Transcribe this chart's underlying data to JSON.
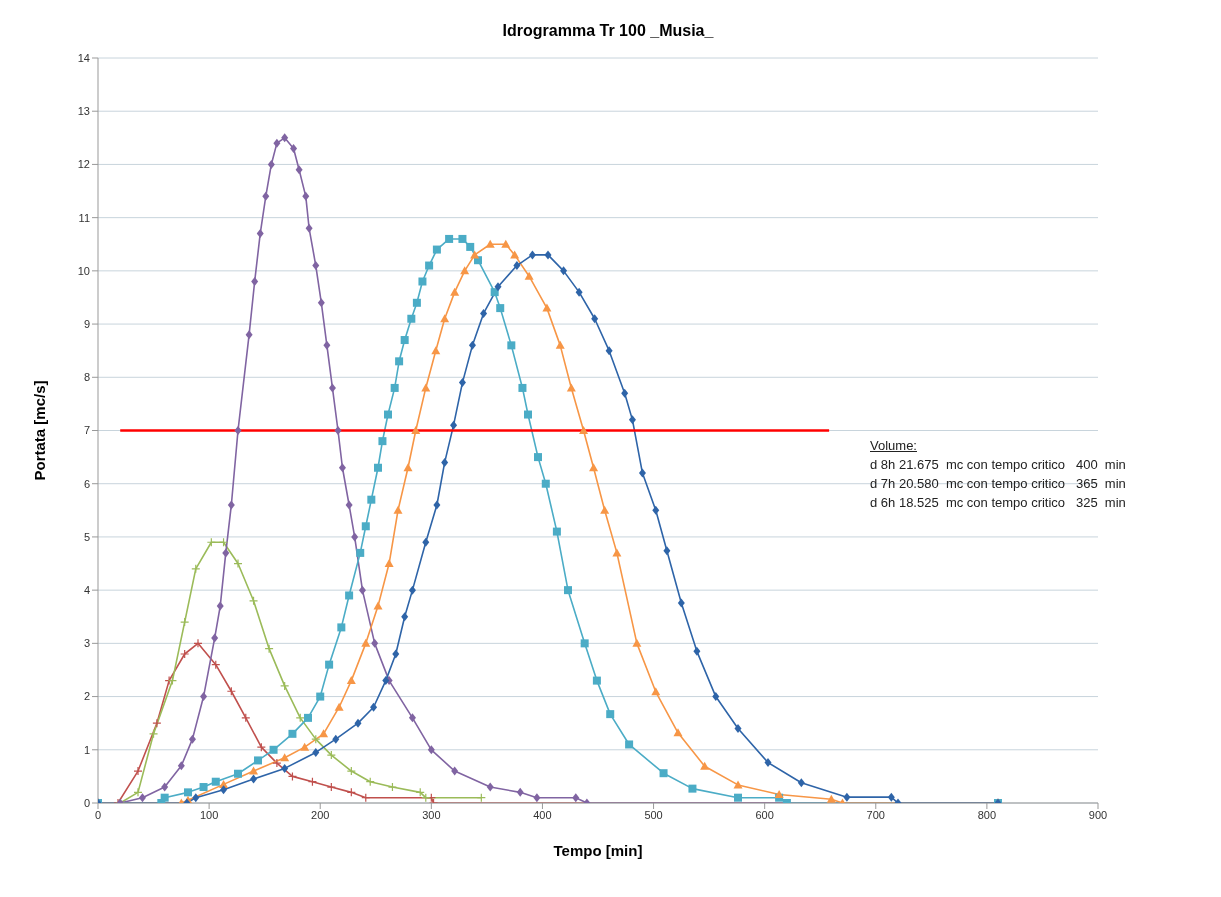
{
  "chart_data": {
    "type": "line",
    "title": "Idrogramma Tr 100 _Musia_",
    "xlabel": "Tempo [min]",
    "ylabel": "Portata [mc/s]",
    "xlim": [
      0,
      900
    ],
    "xticks": [
      0,
      100,
      200,
      300,
      400,
      500,
      600,
      700,
      800,
      900
    ],
    "ylim": [
      0,
      14
    ],
    "yticks": [
      0,
      1,
      2,
      3,
      4,
      5,
      6,
      7,
      8,
      9,
      10,
      11,
      12,
      13,
      14
    ],
    "grid": "y",
    "legend": false,
    "line_style": "solid",
    "annotations": [
      "Volume:",
      "d 8h 21.675  mc con tempo critico   400  min",
      "d 7h 20.580  mc con tempo critico   365  min",
      "d 6h 18.525  mc con tempo critico   325  min"
    ],
    "series": [
      {
        "color": "#c0504d",
        "marker": "cross",
        "x": [
          0,
          18,
          36,
          53,
          64,
          78,
          90,
          106,
          120,
          133,
          147,
          161,
          175,
          193,
          210,
          228,
          241,
          300,
          302,
          810
        ],
        "values": [
          0,
          0,
          0.6,
          1.5,
          2.3,
          2.8,
          3,
          2.6,
          2.1,
          1.6,
          1.05,
          0.75,
          0.5,
          0.4,
          0.3,
          0.2,
          0.1,
          0.1,
          0,
          0
        ]
      },
      {
        "color": "#9bbb59",
        "marker": "cross",
        "x": [
          0,
          20,
          36,
          50,
          67,
          78,
          88,
          102,
          113,
          126,
          140,
          154,
          168,
          182,
          196,
          210,
          228,
          245,
          265,
          290,
          295,
          345
        ],
        "values": [
          0,
          0,
          0.2,
          1.3,
          2.3,
          3.4,
          4.4,
          4.9,
          4.9,
          4.5,
          3.8,
          2.9,
          2.2,
          1.6,
          1.2,
          0.9,
          0.6,
          0.4,
          0.3,
          0.2,
          0.1,
          0.1
        ]
      },
      {
        "color": "#8064a2",
        "marker": "diamond",
        "x": [
          0,
          20,
          40,
          60,
          75,
          85,
          95,
          105,
          110,
          115,
          120,
          126,
          136,
          141,
          146,
          151,
          156,
          161,
          168,
          176,
          181,
          187,
          190,
          196,
          201,
          206,
          211,
          216,
          220,
          226,
          231,
          238,
          249,
          262,
          283,
          300,
          321,
          353,
          380,
          395,
          430,
          440,
          810
        ],
        "values": [
          0,
          0,
          0.1,
          0.3,
          0.7,
          1.2,
          2,
          3.1,
          3.7,
          4.7,
          5.6,
          7,
          8.8,
          9.8,
          10.7,
          11.4,
          12,
          12.4,
          12.5,
          12.3,
          11.9,
          11.4,
          10.8,
          10.1,
          9.4,
          8.6,
          7.8,
          7,
          6.3,
          5.6,
          5,
          4,
          3,
          2.3,
          1.6,
          1,
          0.6,
          0.3,
          0.2,
          0.1,
          0.1,
          0,
          0
        ]
      },
      {
        "color": "#4bacc6",
        "marker": "square",
        "x": [
          0,
          57,
          60,
          81,
          95,
          106,
          126,
          144,
          158,
          175,
          189,
          200,
          208,
          219,
          226,
          236,
          241,
          246,
          252,
          256,
          261,
          267,
          271,
          276,
          282,
          287,
          292,
          298,
          305,
          316,
          328,
          335,
          342,
          357,
          362,
          372,
          382,
          387,
          396,
          403,
          413,
          423,
          438,
          449,
          461,
          478,
          509,
          535,
          576,
          613,
          620,
          810
        ],
        "values": [
          0,
          0,
          0.1,
          0.2,
          0.3,
          0.4,
          0.55,
          0.8,
          1,
          1.3,
          1.6,
          2,
          2.6,
          3.3,
          3.9,
          4.7,
          5.2,
          5.7,
          6.3,
          6.8,
          7.3,
          7.8,
          8.3,
          8.7,
          9.1,
          9.4,
          9.8,
          10.1,
          10.4,
          10.6,
          10.6,
          10.45,
          10.2,
          9.6,
          9.3,
          8.6,
          7.8,
          7.3,
          6.5,
          6,
          5.1,
          4,
          3,
          2.3,
          1.67,
          1.1,
          0.56,
          0.27,
          0.1,
          0.1,
          0,
          0
        ]
      },
      {
        "color": "#f79646",
        "marker": "triangle",
        "x": [
          0,
          75,
          81,
          113,
          140,
          168,
          186,
          203,
          217,
          228,
          241,
          252,
          262,
          270,
          279,
          286,
          295,
          304,
          312,
          321,
          330,
          339,
          353,
          367,
          375,
          388,
          404,
          416,
          426,
          437,
          446,
          456,
          467,
          485,
          502,
          522,
          546,
          576,
          613,
          660,
          670,
          810
        ],
        "values": [
          0,
          0,
          0.05,
          0.35,
          0.6,
          0.85,
          1.05,
          1.3,
          1.8,
          2.3,
          3,
          3.7,
          4.5,
          5.5,
          6.3,
          7,
          7.8,
          8.5,
          9.1,
          9.6,
          10,
          10.3,
          10.5,
          10.5,
          10.3,
          9.9,
          9.3,
          8.6,
          7.8,
          7,
          6.3,
          5.5,
          4.7,
          3,
          2.09,
          1.32,
          0.69,
          0.34,
          0.16,
          0.07,
          0,
          0
        ]
      },
      {
        "color": "#2e64a8",
        "marker": "diamond",
        "x": [
          0,
          80,
          88,
          113,
          140,
          168,
          196,
          214,
          234,
          248,
          259,
          268,
          276,
          283,
          295,
          305,
          312,
          320,
          328,
          337,
          347,
          360,
          377,
          391,
          405,
          419,
          433,
          447,
          460,
          474,
          481,
          490,
          502,
          512,
          525,
          539,
          556,
          576,
          603,
          633,
          674,
          714,
          720,
          810
        ],
        "values": [
          0,
          0,
          0.1,
          0.25,
          0.45,
          0.65,
          0.95,
          1.2,
          1.5,
          1.8,
          2.3,
          2.8,
          3.5,
          4,
          4.9,
          5.6,
          6.4,
          7.1,
          7.9,
          8.6,
          9.2,
          9.7,
          10.1,
          10.3,
          10.3,
          10,
          9.6,
          9.1,
          8.5,
          7.7,
          7.2,
          6.2,
          5.5,
          4.74,
          3.76,
          2.85,
          2,
          1.4,
          0.76,
          0.38,
          0.11,
          0.11,
          0,
          0
        ]
      },
      {
        "color": "#ff0000",
        "marker": "none",
        "x": [
          20,
          658
        ],
        "values": [
          7,
          7
        ]
      }
    ]
  }
}
